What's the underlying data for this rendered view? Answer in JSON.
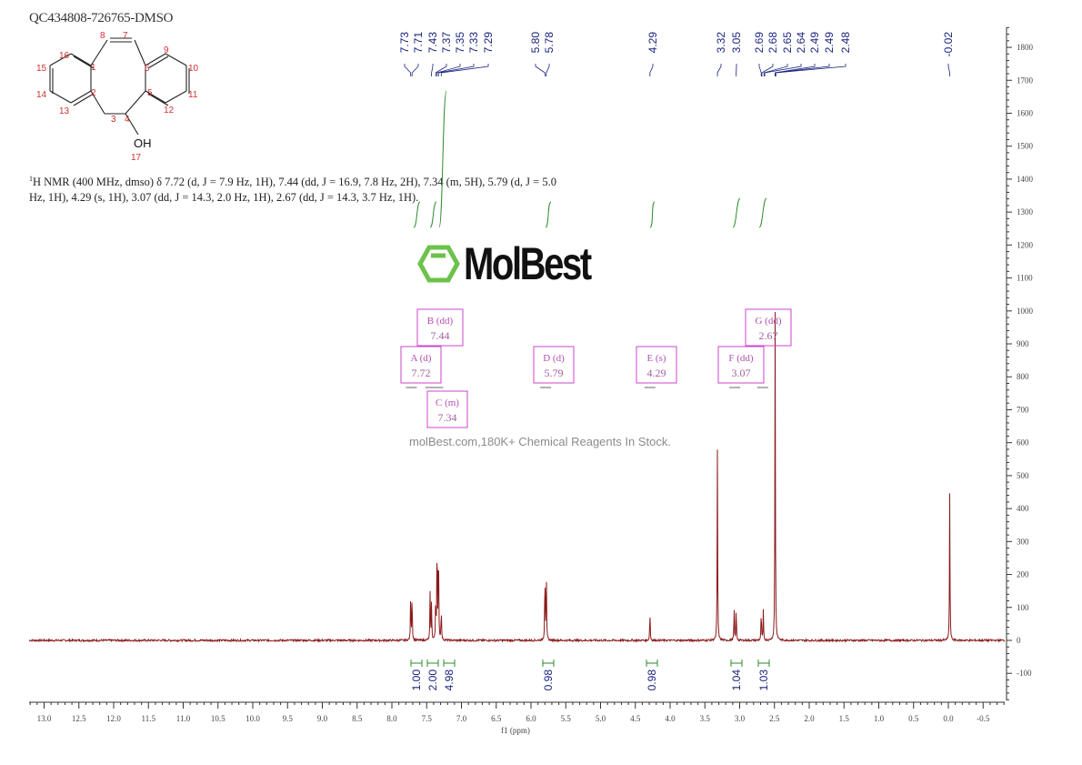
{
  "sample_id": "QC434808-726765-DMSO",
  "nmr_description": {
    "sup": "1",
    "text": "H NMR (400 MHz, dmso) δ 7.72 (d, J = 7.9 Hz, 1H), 7.44 (dd, J = 16.9, 7.8 Hz, 2H), 7.34 (m, 5H), 5.79 (d, J = 5.0 Hz, 1H), 4.29 (s, 1H), 3.07 (dd, J = 14.3, 2.0 Hz, 1H), 2.67 (dd, J = 14.3, 3.7 Hz, 1H)."
  },
  "structure": {
    "atom_numbers": [
      "1",
      "2",
      "3",
      "4",
      "5",
      "6",
      "7",
      "8",
      "9",
      "10",
      "11",
      "12",
      "13",
      "14",
      "15",
      "16",
      "17"
    ],
    "oh_label": "OH"
  },
  "watermark": {
    "logo": "MolBest",
    "text": "molBest.com,180K+ Chemical Reagents In Stock."
  },
  "chart_data": {
    "type": "line",
    "xlabel": "f1 (ppm)",
    "ylabel": "",
    "xlim": [
      13.2,
      -0.8
    ],
    "ylim": [
      -180,
      1860
    ],
    "x_ticks": [
      "13.0",
      "12.5",
      "12.0",
      "11.5",
      "11.0",
      "10.5",
      "10.0",
      "9.5",
      "9.0",
      "8.5",
      "8.0",
      "7.5",
      "7.0",
      "6.5",
      "6.0",
      "5.5",
      "5.0",
      "4.5",
      "4.0",
      "3.5",
      "3.0",
      "2.5",
      "2.0",
      "1.5",
      "1.0",
      "0.5",
      "0.0",
      "-0.5"
    ],
    "y_ticks": [
      "1800",
      "1700",
      "1600",
      "1500",
      "1400",
      "1300",
      "1200",
      "1100",
      "1000",
      "900",
      "800",
      "700",
      "600",
      "500",
      "400",
      "300",
      "200",
      "100",
      "0",
      "-100"
    ],
    "peaks": [
      {
        "ppm": 7.73,
        "height": 140
      },
      {
        "ppm": 7.71,
        "height": 150
      },
      {
        "ppm": 7.45,
        "height": 150
      },
      {
        "ppm": 7.43,
        "height": 120
      },
      {
        "ppm": 7.37,
        "height": 130
      },
      {
        "ppm": 7.35,
        "height": 340
      },
      {
        "ppm": 7.33,
        "height": 320
      },
      {
        "ppm": 7.29,
        "height": 100
      },
      {
        "ppm": 5.8,
        "height": 215
      },
      {
        "ppm": 5.78,
        "height": 220
      },
      {
        "ppm": 4.29,
        "height": 95
      },
      {
        "ppm": 3.32,
        "height": 580
      },
      {
        "ppm": 3.08,
        "height": 100
      },
      {
        "ppm": 3.05,
        "height": 105
      },
      {
        "ppm": 2.69,
        "height": 95
      },
      {
        "ppm": 2.66,
        "height": 90
      },
      {
        "ppm": 2.49,
        "height": 1000
      },
      {
        "ppm": -0.02,
        "height": 450
      }
    ],
    "peak_labels": [
      "7.73",
      "7.71",
      "7.43",
      "7.37",
      "7.35",
      "7.33",
      "7.29",
      "5.80",
      "5.78",
      "4.29",
      "3.32",
      "3.05",
      "2.69",
      "2.68",
      "2.65",
      "2.64",
      "2.49",
      "2.49",
      "2.48",
      "-0.02"
    ],
    "integrals": [
      {
        "ppm": 7.72,
        "value": "1.00"
      },
      {
        "ppm": 7.44,
        "value": "2.00"
      },
      {
        "ppm": 7.34,
        "value": "4.98"
      },
      {
        "ppm": 5.79,
        "value": "0.98"
      },
      {
        "ppm": 4.29,
        "value": "0.98"
      },
      {
        "ppm": 3.07,
        "value": "1.04"
      },
      {
        "ppm": 2.67,
        "value": "1.03"
      }
    ],
    "multiplets": [
      {
        "label": "A (d)",
        "shift": "7.72"
      },
      {
        "label": "B (dd)",
        "shift": "7.44"
      },
      {
        "label": "C (m)",
        "shift": "7.34"
      },
      {
        "label": "D (d)",
        "shift": "5.79"
      },
      {
        "label": "E (s)",
        "shift": "4.29"
      },
      {
        "label": "F (dd)",
        "shift": "3.07"
      },
      {
        "label": "G (dd)",
        "shift": "2.67"
      }
    ],
    "colors": {
      "spectrum": "#8b1a1a",
      "peak_label": "#1a237e",
      "integral": "#2e8b2e",
      "multiplet_box": "#cc44cc",
      "logo": "#6cc24a"
    }
  }
}
